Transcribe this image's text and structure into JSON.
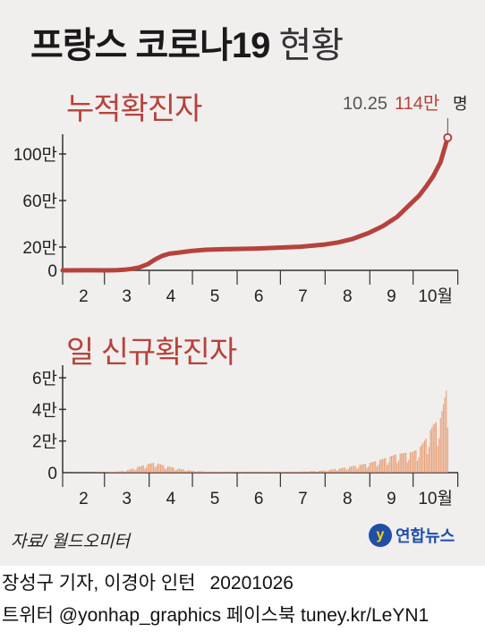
{
  "title": {
    "main": "프랑스 코로나19",
    "sub": "현황"
  },
  "source": "자료/ 월드오미터",
  "logo": {
    "mark": "y",
    "text": "연합뉴스"
  },
  "credits": {
    "reporter": "장성구 기자, 이경아 인턴",
    "date": "20201026",
    "social": "트위터 @yonhap_graphics  페이스북 tuney.kr/LeYN1"
  },
  "colors": {
    "line": "#b6423d",
    "bar": "#e8a078",
    "background": "#f0efed",
    "axis": "#333333"
  },
  "chart_data": [
    {
      "type": "line",
      "title": "누적확진자",
      "unit": "명",
      "xlabel": "",
      "ylabel": "",
      "x_tick_labels": [
        "2",
        "3",
        "4",
        "5",
        "6",
        "7",
        "8",
        "9",
        "10월"
      ],
      "y_tick_labels": [
        "0",
        "20만",
        "60만",
        "100만"
      ],
      "y_tick_values": [
        0,
        200000,
        600000,
        1000000
      ],
      "ylim": [
        0,
        1200000
      ],
      "annotation": {
        "date": "10.25",
        "value_label": "114만",
        "unit": "명",
        "value": 1140000
      },
      "series": [
        {
          "points": [
            [
              "2020-02-01",
              0
            ],
            [
              "2020-02-20",
              1000
            ],
            [
              "2020-03-01",
              150
            ],
            [
              "2020-03-10",
              1800
            ],
            [
              "2020-03-15",
              5400
            ],
            [
              "2020-03-20",
              13000
            ],
            [
              "2020-03-25",
              25000
            ],
            [
              "2020-03-31",
              53000
            ],
            [
              "2020-04-05",
              93000
            ],
            [
              "2020-04-10",
              125000
            ],
            [
              "2020-04-15",
              143000
            ],
            [
              "2020-04-20",
              150000
            ],
            [
              "2020-04-30",
              166000
            ],
            [
              "2020-05-10",
              177000
            ],
            [
              "2020-05-20",
              181000
            ],
            [
              "2020-05-31",
              184000
            ],
            [
              "2020-06-15",
              188000
            ],
            [
              "2020-06-30",
              195000
            ],
            [
              "2020-07-15",
              203000
            ],
            [
              "2020-07-31",
              221000
            ],
            [
              "2020-08-10",
              240000
            ],
            [
              "2020-08-20",
              270000
            ],
            [
              "2020-08-31",
              320000
            ],
            [
              "2020-09-10",
              380000
            ],
            [
              "2020-09-20",
              460000
            ],
            [
              "2020-09-30",
              580000
            ],
            [
              "2020-10-05",
              640000
            ],
            [
              "2020-10-10",
              720000
            ],
            [
              "2020-10-15",
              810000
            ],
            [
              "2020-10-20",
              930000
            ],
            [
              "2020-10-25",
              1140000
            ]
          ]
        }
      ]
    },
    {
      "type": "bar",
      "title": "일 신규확진자",
      "xlabel": "",
      "ylabel": "",
      "x_tick_labels": [
        "2",
        "3",
        "4",
        "5",
        "6",
        "7",
        "8",
        "9",
        "10월"
      ],
      "y_tick_labels": [
        "0",
        "2만",
        "4만",
        "6만"
      ],
      "y_tick_values": [
        0,
        20000,
        40000,
        60000
      ],
      "ylim": [
        0,
        60000
      ],
      "series": [
        {
          "keypoints": [
            [
              "2020-02-01",
              0
            ],
            [
              "2020-03-01",
              200
            ],
            [
              "2020-03-15",
              1000
            ],
            [
              "2020-03-31",
              5000
            ],
            [
              "2020-04-05",
              6000
            ],
            [
              "2020-04-10",
              4500
            ],
            [
              "2020-04-20",
              2500
            ],
            [
              "2020-04-30",
              1200
            ],
            [
              "2020-05-10",
              600
            ],
            [
              "2020-05-31",
              400
            ],
            [
              "2020-06-15",
              400
            ],
            [
              "2020-06-30",
              500
            ],
            [
              "2020-07-15",
              600
            ],
            [
              "2020-07-31",
              1200
            ],
            [
              "2020-08-15",
              3000
            ],
            [
              "2020-08-31",
              5500
            ],
            [
              "2020-09-10",
              8000
            ],
            [
              "2020-09-20",
              11000
            ],
            [
              "2020-09-30",
              12000
            ],
            [
              "2020-10-05",
              14000
            ],
            [
              "2020-10-10",
              20000
            ],
            [
              "2020-10-15",
              28000
            ],
            [
              "2020-10-20",
              32000
            ],
            [
              "2020-10-25",
              52000
            ]
          ]
        }
      ]
    }
  ]
}
